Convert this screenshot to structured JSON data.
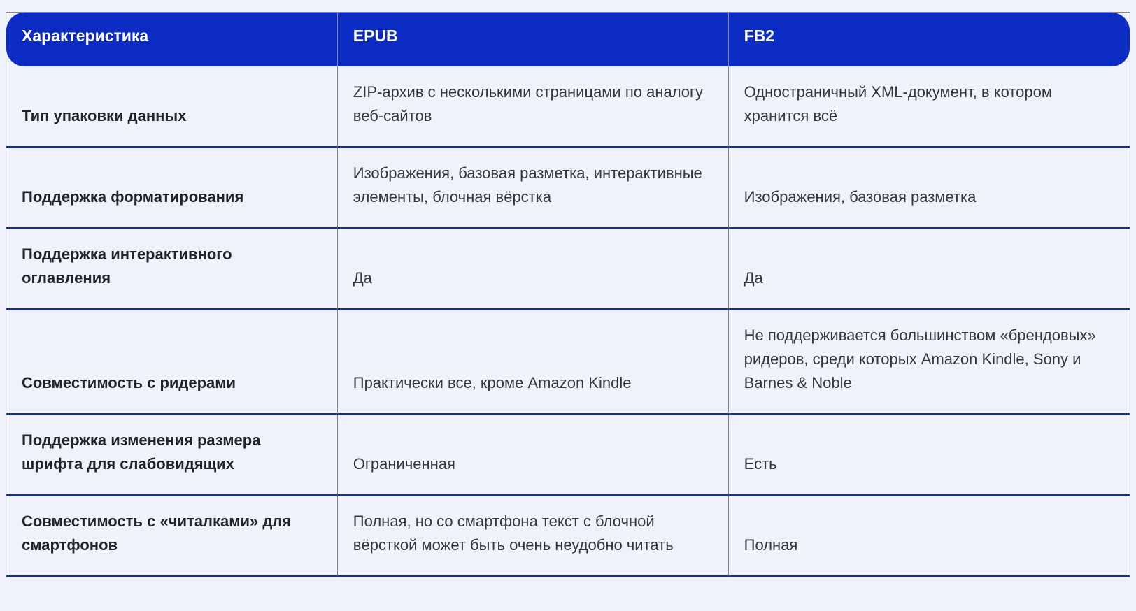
{
  "table": {
    "headers": [
      {
        "label": "Характеристика"
      },
      {
        "label": "EPUB"
      },
      {
        "label": "FB2"
      }
    ],
    "rows": [
      {
        "feature": "Тип упаковки данных",
        "epub": "ZIP-архив с несколькими страницами по аналогу веб-сайтов",
        "fb2": "Одностраничный XML-документ, в котором хранится всё"
      },
      {
        "feature": "Поддержка форматирования",
        "epub": "Изображения, базовая разметка, интерактивные элементы, блочная вёрстка",
        "fb2": "Изображения, базовая разметка"
      },
      {
        "feature": "Поддержка интерактивного оглавления",
        "epub": "Да",
        "fb2": "Да"
      },
      {
        "feature": "Совместимость с ридерами",
        "epub": "Практически все, кроме Amazon Kindle",
        "fb2": "Не поддерживается большинством «брендовых» ридеров, среди которых Amazon Kindle, Sony и Barnes & Noble"
      },
      {
        "feature": "Поддержка изменения размера шрифта для слабовидящих",
        "epub": "Ограниченная",
        "fb2": "Есть"
      },
      {
        "feature": "Совместимость с «читалками» для смартфонов",
        "epub": "Полная, но со смартфона текст с блочной вёрсткой может быть очень неудобно читать",
        "fb2": "Полная"
      }
    ],
    "colors": {
      "page_bg": "#eff2fa",
      "header_bg": "#0b2bc3",
      "header_text": "#ffffff",
      "row_divider": "#0e2ea8",
      "cell_border": "#868688",
      "text_regular": "#333840",
      "text_bold": "#20252b"
    }
  }
}
